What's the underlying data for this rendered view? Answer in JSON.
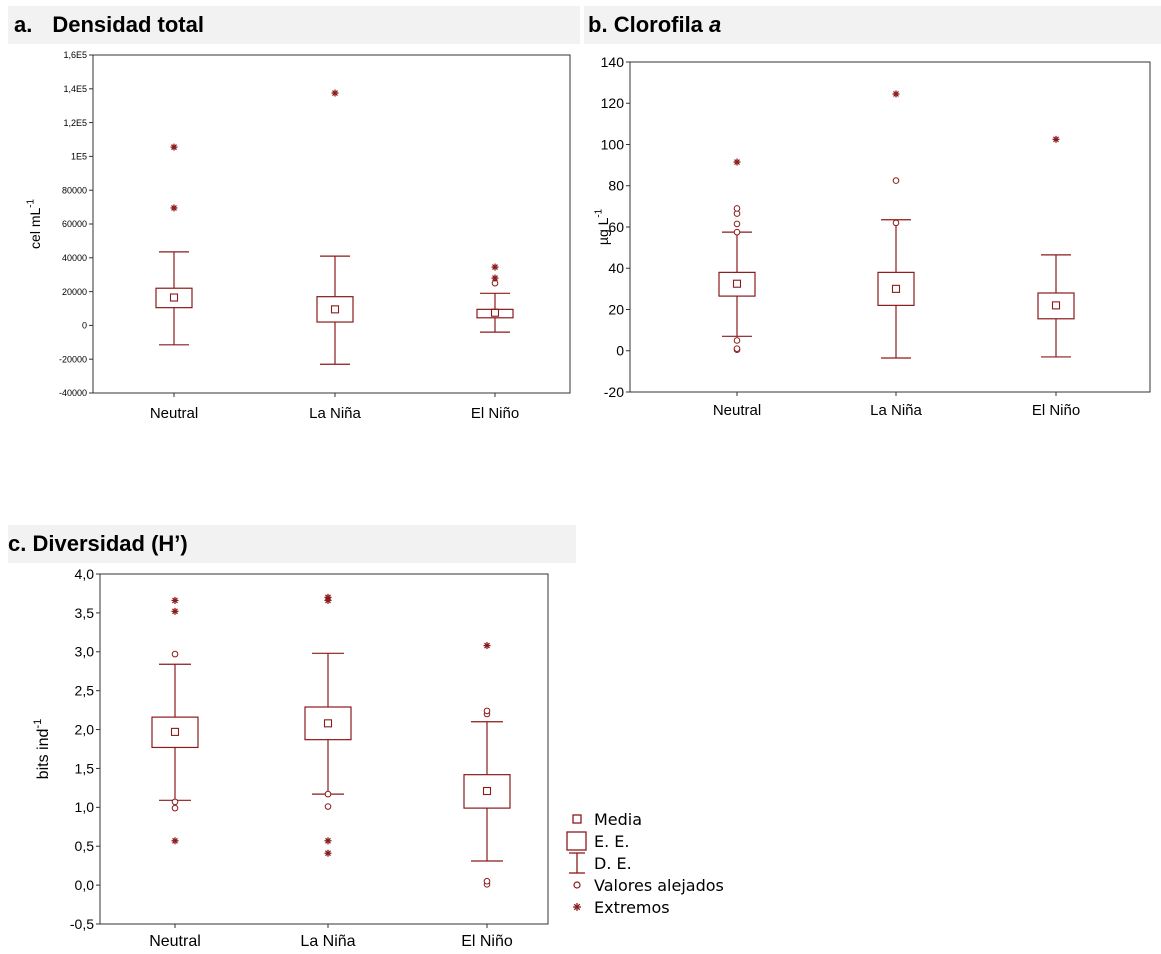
{
  "panels": {
    "a": {
      "letter": "a.",
      "title": "Densidad total",
      "title_suffix": ""
    },
    "b": {
      "letter": "b.",
      "title": "Clorofila",
      "title_suffix": "a"
    },
    "c": {
      "letter": "c.",
      "title": "Diversidad (H’)",
      "title_suffix": ""
    }
  },
  "colors": {
    "series": "#8b1a1a",
    "frame": "#333333"
  },
  "legend": {
    "items": [
      {
        "key": "mean",
        "label": "Media"
      },
      {
        "key": "se",
        "label": "E. E."
      },
      {
        "key": "sd",
        "label": "D. E."
      },
      {
        "key": "outlier",
        "label": "Valores alejados"
      },
      {
        "key": "extreme",
        "label": "Extremos"
      }
    ]
  },
  "chart_data": [
    {
      "id": "a",
      "type": "box",
      "title": "Densidad total",
      "ylabel": "cel mL",
      "ylabel_sup": "-1",
      "ylim": [
        -40000,
        160000
      ],
      "yticks": [
        -40000,
        -20000,
        0,
        20000,
        40000,
        60000,
        80000,
        100000,
        120000,
        140000,
        160000
      ],
      "ytick_labels": [
        "-40000",
        "-20000",
        "0",
        "20000",
        "40000",
        "60000",
        "80000",
        "1E5",
        "1,2E5",
        "1,4E5",
        "1,6E5"
      ],
      "categories": [
        "Neutral",
        "La Niña",
        "El Niño"
      ],
      "mean": [
        16500,
        9500,
        7500
      ],
      "se": [
        [
          10500,
          22000
        ],
        [
          2000,
          17000
        ],
        [
          4500,
          9500
        ]
      ],
      "sd": [
        [
          -11500,
          43500
        ],
        [
          -23000,
          41000
        ],
        [
          -4000,
          19000
        ]
      ],
      "outliers": [
        [],
        [],
        [
          25000
        ]
      ],
      "extremes": [
        [
          69500,
          105500
        ],
        [
          137500
        ],
        [
          28000,
          34500
        ]
      ]
    },
    {
      "id": "b",
      "type": "box",
      "title": "Clorofila a",
      "ylabel": "µg L",
      "ylabel_sup": "-1",
      "ylim": [
        -20,
        140
      ],
      "yticks": [
        -20,
        0,
        20,
        40,
        60,
        80,
        100,
        120,
        140
      ],
      "ytick_labels": [
        "-20",
        "0",
        "20",
        "40",
        "60",
        "80",
        "100",
        "120",
        "140"
      ],
      "categories": [
        "Neutral",
        "La Niña",
        "El Niño"
      ],
      "mean": [
        32.5,
        30,
        22
      ],
      "se": [
        [
          26.5,
          38
        ],
        [
          22,
          38
        ],
        [
          15.5,
          28
        ]
      ],
      "sd": [
        [
          7,
          57.5
        ],
        [
          -3.5,
          63.5
        ],
        [
          -3,
          46.5
        ]
      ],
      "outliers": [
        [
          0.5,
          1,
          5,
          57.5,
          61.5,
          66.5,
          69
        ],
        [
          62,
          82.5
        ],
        []
      ],
      "extremes": [
        [
          91.5
        ],
        [
          124.5
        ],
        [
          102.5
        ]
      ]
    },
    {
      "id": "c",
      "type": "box",
      "title": "Diversidad (H’)",
      "ylabel": "bits ind",
      "ylabel_sup": "-1",
      "ylim": [
        -0.5,
        4.0
      ],
      "yticks": [
        -0.5,
        0,
        0.5,
        1.0,
        1.5,
        2.0,
        2.5,
        3.0,
        3.5,
        4.0
      ],
      "ytick_labels": [
        "-0,5",
        "0,0",
        "0,5",
        "1,0",
        "1,5",
        "2,0",
        "2,5",
        "3,0",
        "3,5",
        "4,0"
      ],
      "categories": [
        "Neutral",
        "La Niña",
        "El Niño"
      ],
      "mean": [
        1.97,
        2.08,
        1.21
      ],
      "se": [
        [
          1.77,
          2.16
        ],
        [
          1.87,
          2.29
        ],
        [
          0.99,
          1.42
        ]
      ],
      "sd": [
        [
          1.09,
          2.84
        ],
        [
          1.17,
          2.98
        ],
        [
          0.31,
          2.1
        ]
      ],
      "outliers": [
        [
          0.99,
          1.07,
          2.97
        ],
        [
          1.01,
          1.17
        ],
        [
          0.01,
          0.05,
          2.2,
          2.24
        ]
      ],
      "extremes": [
        [
          0.57,
          3.52,
          3.66
        ],
        [
          0.41,
          0.57,
          3.66,
          3.7
        ],
        [
          3.08
        ]
      ]
    }
  ]
}
